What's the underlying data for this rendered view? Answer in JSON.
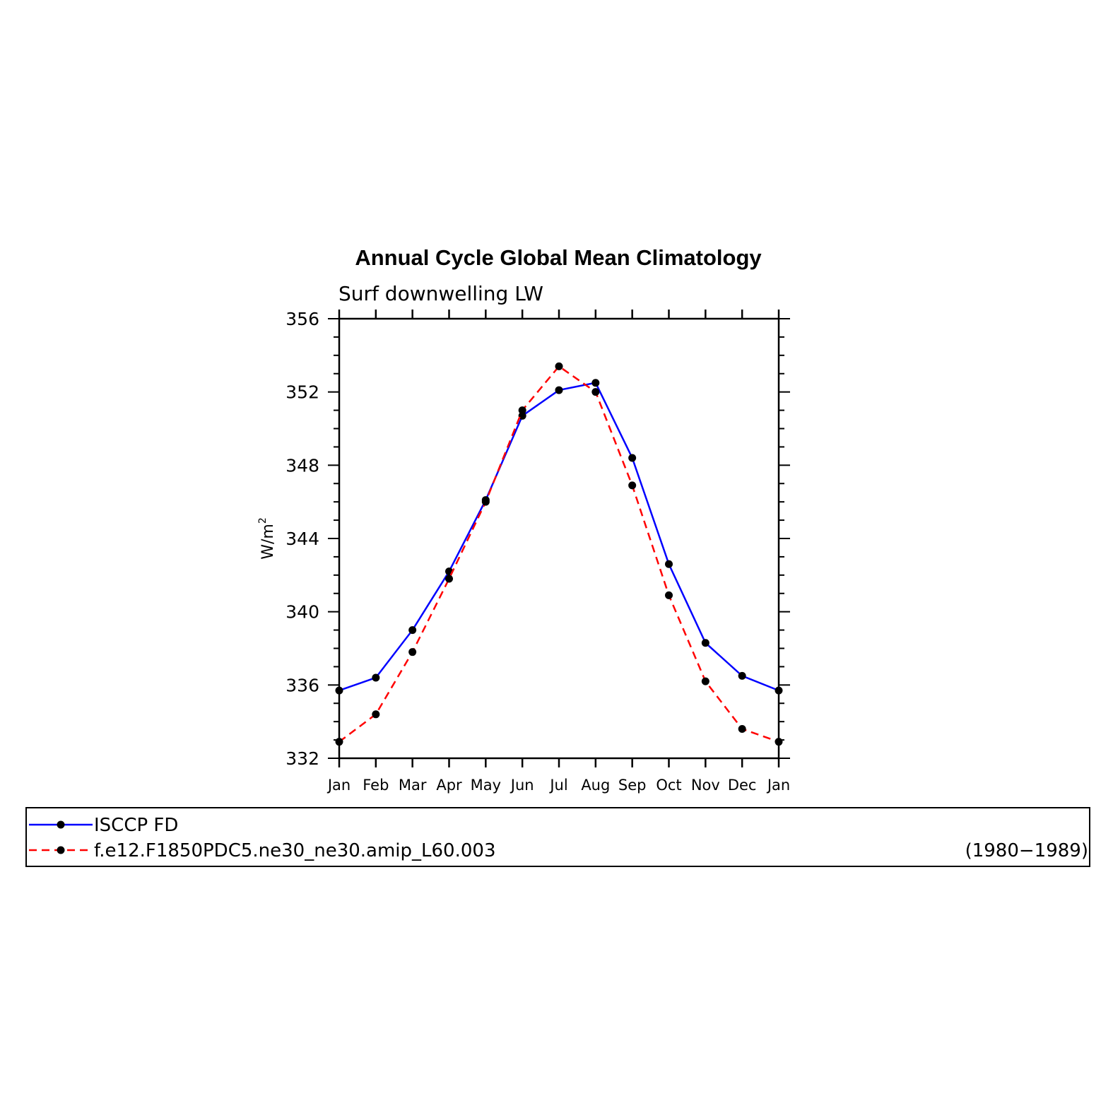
{
  "chart_data": {
    "type": "line",
    "title": "Annual Cycle Global Mean Climatology",
    "subtitle": "Surf downwelling LW",
    "ylabel": "W/m",
    "ylabel_sup": "2",
    "xlabel": "",
    "categories": [
      "Jan",
      "Feb",
      "Mar",
      "Apr",
      "May",
      "Jun",
      "Jul",
      "Aug",
      "Sep",
      "Oct",
      "Nov",
      "Dec",
      "Jan"
    ],
    "ylim": [
      332,
      356
    ],
    "yticks": [
      332,
      336,
      340,
      344,
      348,
      352,
      356
    ],
    "yminor_step": 1,
    "grid": false,
    "legend_position": "bottom",
    "series": [
      {
        "name": "ISCCP FD",
        "color": "#0000ff",
        "dash": "solid",
        "values": [
          335.7,
          336.4,
          339.0,
          342.2,
          346.1,
          350.7,
          352.1,
          352.5,
          348.4,
          342.6,
          338.3,
          336.5,
          335.7
        ]
      },
      {
        "name": "f.e12.F1850PDC5.ne30_ne30.amip_L60.003",
        "color": "#ff0000",
        "dash": "dashed",
        "values": [
          332.9,
          334.4,
          337.8,
          341.8,
          346.0,
          351.0,
          353.4,
          352.0,
          346.9,
          340.9,
          336.2,
          333.6,
          332.9
        ]
      }
    ],
    "legend_note": "(1980−1989)"
  }
}
